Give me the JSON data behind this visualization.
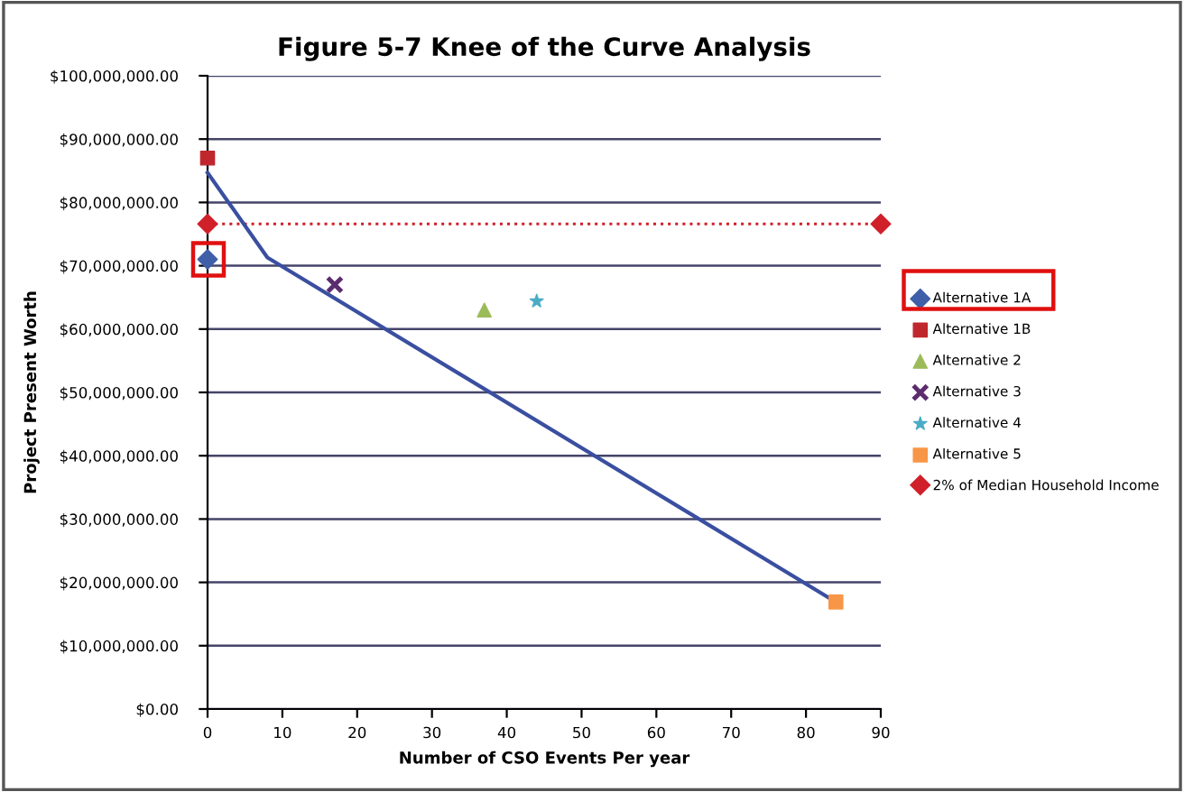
{
  "chart_data": {
    "type": "scatter",
    "title": "Figure 5-7 Knee of the Curve Analysis",
    "xlabel": "Number of CSO Events Per year",
    "ylabel": "Project Present Worth",
    "xlim": [
      0,
      90
    ],
    "xticks": [
      0,
      10,
      20,
      30,
      40,
      50,
      60,
      70,
      80,
      90
    ],
    "ylim": [
      0,
      100000000
    ],
    "yticks": [
      {
        "value": 0,
        "label": "$0.00"
      },
      {
        "value": 10000000,
        "label": "$10,000,000.00"
      },
      {
        "value": 20000000,
        "label": "$20,000,000.00"
      },
      {
        "value": 30000000,
        "label": "$30,000,000.00"
      },
      {
        "value": 40000000,
        "label": "$40,000,000.00"
      },
      {
        "value": 50000000,
        "label": "$50,000,000.00"
      },
      {
        "value": 60000000,
        "label": "$60,000,000.00"
      },
      {
        "value": 70000000,
        "label": "$70,000,000.00"
      },
      {
        "value": 80000000,
        "label": "$80,000,000.00"
      },
      {
        "value": 90000000,
        "label": "$90,000,000.00"
      },
      {
        "value": 100000000,
        "label": "$100,000,000.00"
      }
    ],
    "grid": "y",
    "legend": "right",
    "series": [
      {
        "name": "Alternative 1A",
        "color": "#3f5fa8",
        "marker": "diamond",
        "x": [
          0
        ],
        "values": [
          71000000
        ]
      },
      {
        "name": "Alternative 1B",
        "color": "#c0272d",
        "marker": "square",
        "x": [
          0
        ],
        "values": [
          87000000
        ]
      },
      {
        "name": "Alternative 2",
        "color": "#9bbb59",
        "marker": "triangle",
        "x": [
          37
        ],
        "values": [
          63000000
        ]
      },
      {
        "name": "Alternative 3",
        "color": "#5b2c6f",
        "marker": "cross",
        "x": [
          17
        ],
        "values": [
          67000000
        ]
      },
      {
        "name": "Alternative 4",
        "color": "#4bacc6",
        "marker": "star",
        "x": [
          44
        ],
        "values": [
          64400000
        ]
      },
      {
        "name": "Alternative 5",
        "color": "#f79646",
        "marker": "square",
        "x": [
          84
        ],
        "values": [
          16900000
        ]
      },
      {
        "name": "2% of Median Household Income",
        "type": "line",
        "color": "#d0202a",
        "marker": "diamond",
        "line_style": "dotted",
        "x": [
          0,
          90
        ],
        "values": [
          76600000,
          76600000
        ]
      },
      {
        "type": "line",
        "color": "#3a4fa0",
        "marker": "none",
        "line_style": "solid",
        "x": [
          0,
          8,
          84
        ],
        "values": [
          84700000,
          71300000,
          16900000
        ]
      }
    ]
  }
}
